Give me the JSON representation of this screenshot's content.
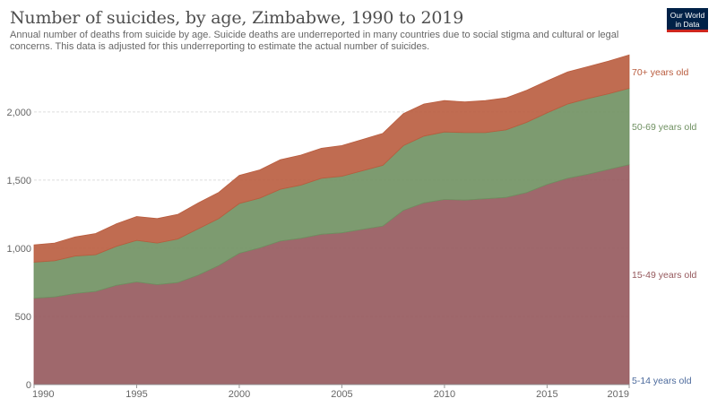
{
  "header": {
    "title": "Number of suicides, by age, Zimbabwe, 1990 to 2019",
    "subtitle": "Annual number of deaths from suicide by age. Suicide deaths are underreported in many countries due to social stigma and cultural or legal concerns. This data is adjusted for this underreporting to estimate the actual number of suicides.",
    "logo_line1": "Our World",
    "logo_line2": "in Data"
  },
  "chart_data": {
    "type": "area",
    "stacked": true,
    "x": [
      1990,
      1991,
      1992,
      1993,
      1994,
      1995,
      1996,
      1997,
      1998,
      1999,
      2000,
      2001,
      2002,
      2003,
      2004,
      2005,
      2006,
      2007,
      2008,
      2009,
      2010,
      2011,
      2012,
      2013,
      2014,
      2015,
      2016,
      2017,
      2018,
      2019
    ],
    "xlim": [
      1990,
      2019
    ],
    "ylim": [
      0,
      2400
    ],
    "x_ticks": [
      1990,
      1995,
      2000,
      2005,
      2010,
      2015,
      2019
    ],
    "y_ticks": [
      0,
      500,
      1000,
      1500,
      2000
    ],
    "y_tick_labels": [
      "0",
      "500",
      "1,000",
      "1,500",
      "2,000"
    ],
    "grid": "horizontal",
    "legend": "right-end labels",
    "series": [
      {
        "name": "5-14 years old",
        "color": "#4c6a9c",
        "values": [
          3,
          3,
          3,
          3,
          3,
          3,
          3,
          3,
          3,
          3,
          3,
          3,
          3,
          3,
          3,
          3,
          3,
          3,
          3,
          3,
          3,
          3,
          3,
          3,
          3,
          3,
          3,
          3,
          3,
          3
        ]
      },
      {
        "name": "15-49 years old",
        "color": "#95585c",
        "values": [
          630,
          640,
          665,
          680,
          725,
          750,
          730,
          745,
          800,
          870,
          960,
          1000,
          1050,
          1070,
          1100,
          1110,
          1135,
          1160,
          1275,
          1330,
          1355,
          1350,
          1360,
          1370,
          1405,
          1465,
          1510,
          1540,
          1575,
          1610
        ]
      },
      {
        "name": "50-69 years old",
        "color": "#6f9061",
        "values": [
          265,
          265,
          275,
          270,
          285,
          305,
          305,
          320,
          340,
          345,
          365,
          365,
          380,
          390,
          410,
          415,
          430,
          445,
          475,
          490,
          495,
          495,
          485,
          495,
          515,
          525,
          545,
          555,
          555,
          560
        ]
      },
      {
        "name": "70+ years old",
        "color": "#b95c3e",
        "values": [
          127,
          130,
          140,
          155,
          165,
          175,
          180,
          180,
          190,
          192,
          207,
          207,
          217,
          220,
          220,
          225,
          230,
          235,
          235,
          235,
          230,
          225,
          235,
          235,
          235,
          235,
          235,
          235,
          240,
          245
        ]
      }
    ]
  }
}
